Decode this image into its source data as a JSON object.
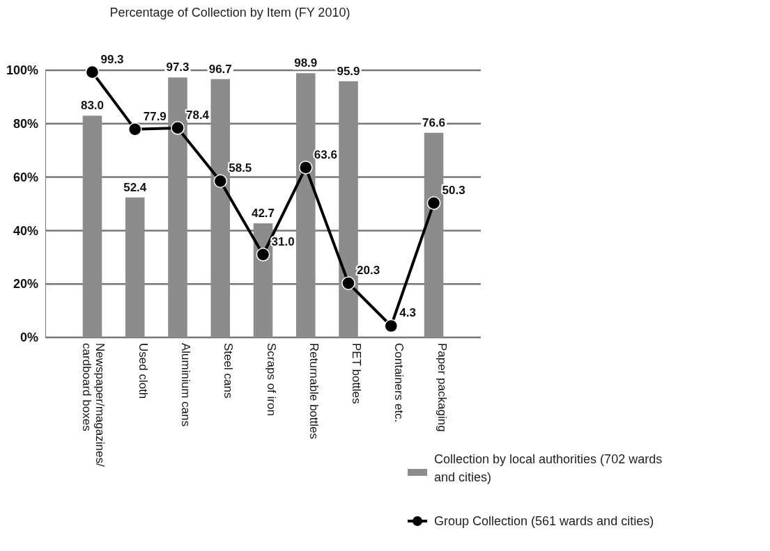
{
  "chart_data": {
    "type": "bar",
    "title": "Percentage of Collection by Item (FY 2010)",
    "categories": [
      "Newspaper/magazines/cardboard boxes",
      "Used cloth",
      "Aluminium cans",
      "Steel cans",
      "Scraps of iron",
      "Returnable bottles",
      "PET bottles",
      "Containers etc.",
      "Paper packaging"
    ],
    "series": [
      {
        "name": "Collection by local authorities (702 wards and cities)",
        "color": "#8c8c8c",
        "values": [
          83.0,
          52.4,
          97.3,
          96.7,
          42.7,
          98.9,
          95.9,
          null,
          76.6
        ],
        "value_labels": [
          "83.0",
          "52.4",
          "97.3",
          "96.7",
          "42.7",
          "98.9",
          "95.9",
          null,
          "76.6"
        ]
      },
      {
        "name": "Group Collection (561 wards and cities)",
        "type": "line",
        "color": "#000000",
        "values": [
          99.3,
          77.9,
          78.4,
          58.5,
          31.0,
          63.6,
          20.3,
          4.3,
          50.3
        ],
        "value_labels": [
          "99.3",
          "77.9",
          "78.4",
          "58.5",
          "31.0",
          "63.6",
          "20.3",
          "4.3",
          "50.3"
        ]
      }
    ],
    "ylim": [
      0,
      100
    ],
    "yticks": [
      {
        "value": 0,
        "label": "0%"
      },
      {
        "value": 20,
        "label": "20%"
      },
      {
        "value": 40,
        "label": "40%"
      },
      {
        "value": 60,
        "label": "60%"
      },
      {
        "value": 80,
        "label": "80%"
      },
      {
        "value": 100,
        "label": "100%"
      }
    ],
    "grid": "y",
    "legend": "bottom right",
    "marker": "circle"
  }
}
